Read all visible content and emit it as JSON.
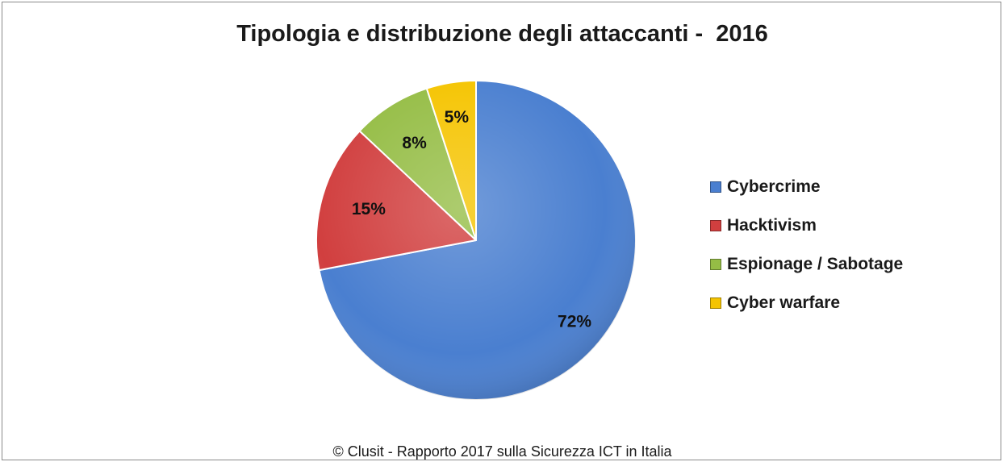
{
  "chart_data": {
    "type": "pie",
    "title": "Tipologia e distribuzione degli attaccanti -  2016",
    "categories": [
      "Cybercrime",
      "Hacktivism",
      "Espionage / Sabotage",
      "Cyber warfare"
    ],
    "values": [
      72,
      15,
      8,
      5
    ],
    "data_labels": [
      "72%",
      "15%",
      "8%",
      "5%"
    ],
    "colors": [
      "#4a7fd0",
      "#d13f3f",
      "#95bd45",
      "#f5c400"
    ],
    "legend_position": "right"
  },
  "footer": "© Clusit - Rapporto 2017 sulla Sicurezza ICT in Italia"
}
